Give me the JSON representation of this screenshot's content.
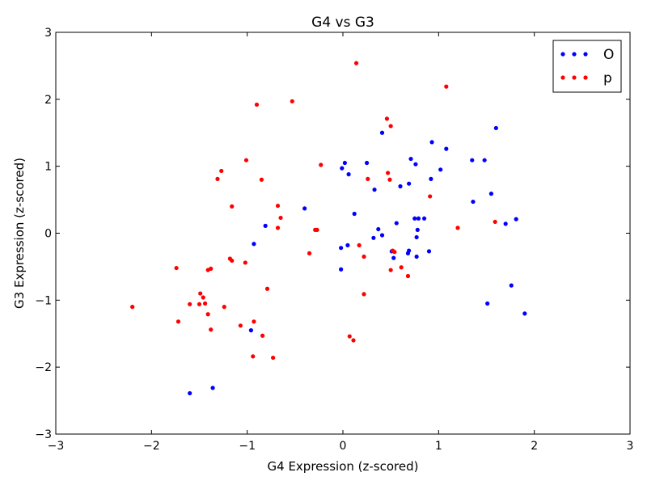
{
  "chart_data": {
    "type": "scatter",
    "title": "G4 vs G3",
    "xlabel": "G4 Expression (z-scored)",
    "ylabel": "G3 Expression (z-scored)",
    "xlim": [
      -3,
      3
    ],
    "ylim": [
      -3,
      3
    ],
    "xticks": [
      -3,
      -2,
      -1,
      0,
      1,
      2,
      3
    ],
    "yticks": [
      -3,
      -2,
      -1,
      0,
      1,
      2,
      3
    ],
    "xtick_labels": [
      "−3",
      "−2",
      "−1",
      "0",
      "1",
      "2",
      "3"
    ],
    "ytick_labels": [
      "−3",
      "−2",
      "−1",
      "0",
      "1",
      "2",
      "3"
    ],
    "grid": false,
    "legend_position": "top-right",
    "series": [
      {
        "name": "O",
        "color": "#0000ff",
        "points": [
          [
            -1.6,
            -2.39
          ],
          [
            -1.36,
            -2.31
          ],
          [
            -0.96,
            -1.45
          ],
          [
            -0.93,
            -0.16
          ],
          [
            -0.81,
            0.11
          ],
          [
            -0.4,
            0.37
          ],
          [
            -0.02,
            -0.54
          ],
          [
            -0.02,
            -0.22
          ],
          [
            -0.01,
            0.97
          ],
          [
            0.02,
            1.05
          ],
          [
            0.05,
            -0.18
          ],
          [
            0.06,
            0.88
          ],
          [
            0.12,
            0.29
          ],
          [
            0.25,
            1.05
          ],
          [
            0.32,
            -0.07
          ],
          [
            0.33,
            0.65
          ],
          [
            0.37,
            0.06
          ],
          [
            0.41,
            -0.03
          ],
          [
            0.41,
            1.5
          ],
          [
            0.51,
            -0.27
          ],
          [
            0.53,
            -0.37
          ],
          [
            0.56,
            0.15
          ],
          [
            0.6,
            0.7
          ],
          [
            0.68,
            -0.3
          ],
          [
            0.69,
            -0.26
          ],
          [
            0.69,
            0.74
          ],
          [
            0.71,
            1.11
          ],
          [
            0.75,
            0.22
          ],
          [
            0.76,
            1.03
          ],
          [
            0.77,
            -0.06
          ],
          [
            0.77,
            -0.35
          ],
          [
            0.78,
            0.05
          ],
          [
            0.79,
            0.22
          ],
          [
            0.85,
            0.22
          ],
          [
            0.9,
            -0.27
          ],
          [
            0.92,
            0.81
          ],
          [
            0.93,
            1.36
          ],
          [
            1.02,
            0.95
          ],
          [
            1.08,
            1.26
          ],
          [
            1.35,
            1.09
          ],
          [
            1.36,
            0.47
          ],
          [
            1.48,
            1.09
          ],
          [
            1.51,
            -1.05
          ],
          [
            1.55,
            0.59
          ],
          [
            1.6,
            1.57
          ],
          [
            1.7,
            0.14
          ],
          [
            1.76,
            -0.78
          ],
          [
            1.81,
            0.21
          ],
          [
            1.9,
            -1.2
          ]
        ]
      },
      {
        "name": "p",
        "color": "#ff0000",
        "points": [
          [
            -2.2,
            -1.1
          ],
          [
            -1.74,
            -0.52
          ],
          [
            -1.72,
            -1.32
          ],
          [
            -1.6,
            -1.06
          ],
          [
            -1.5,
            -1.06
          ],
          [
            -1.49,
            -0.9
          ],
          [
            -1.46,
            -0.96
          ],
          [
            -1.44,
            -1.05
          ],
          [
            -1.41,
            -1.21
          ],
          [
            -1.41,
            -0.55
          ],
          [
            -1.38,
            -1.44
          ],
          [
            -1.38,
            -0.53
          ],
          [
            -1.24,
            -1.1
          ],
          [
            -1.31,
            0.81
          ],
          [
            -1.27,
            0.93
          ],
          [
            -1.18,
            -0.38
          ],
          [
            -1.16,
            -0.41
          ],
          [
            -1.16,
            0.4
          ],
          [
            -1.07,
            -1.38
          ],
          [
            -1.02,
            -0.44
          ],
          [
            -1.01,
            1.09
          ],
          [
            -0.94,
            -1.84
          ],
          [
            -0.93,
            -1.32
          ],
          [
            -0.9,
            1.92
          ],
          [
            -0.85,
            0.8
          ],
          [
            -0.84,
            -1.53
          ],
          [
            -0.79,
            -0.83
          ],
          [
            -0.73,
            -1.86
          ],
          [
            -0.68,
            0.41
          ],
          [
            -0.68,
            0.08
          ],
          [
            -0.65,
            0.23
          ],
          [
            -0.53,
            1.97
          ],
          [
            -0.35,
            -0.3
          ],
          [
            -0.29,
            0.05
          ],
          [
            -0.27,
            0.05
          ],
          [
            -0.23,
            1.02
          ],
          [
            0.07,
            -1.54
          ],
          [
            0.11,
            -1.6
          ],
          [
            0.14,
            2.54
          ],
          [
            0.17,
            -0.18
          ],
          [
            0.22,
            -0.35
          ],
          [
            0.22,
            -0.91
          ],
          [
            0.26,
            0.81
          ],
          [
            0.46,
            1.71
          ],
          [
            0.47,
            0.9
          ],
          [
            0.49,
            0.8
          ],
          [
            0.5,
            1.6
          ],
          [
            0.5,
            -0.55
          ],
          [
            0.52,
            -0.26
          ],
          [
            0.54,
            -0.28
          ],
          [
            0.61,
            -0.51
          ],
          [
            0.68,
            -0.64
          ],
          [
            0.91,
            0.55
          ],
          [
            1.08,
            2.19
          ],
          [
            1.2,
            0.08
          ],
          [
            1.59,
            0.17
          ]
        ]
      }
    ]
  }
}
